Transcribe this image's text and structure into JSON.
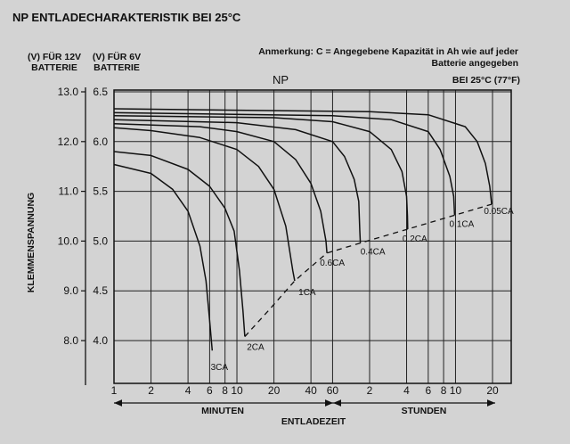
{
  "title": "NP ENTLADECHARAKTERISTIK BEI 25°C",
  "note": "Anmerkung: C = Angegebene Kapazität in Ah wie auf jeder Batterie angegeben",
  "condition": "BEI 25°C (77°F)",
  "y12_header": [
    "(V) FÜR 12V",
    "BATTERIE"
  ],
  "y6_header": [
    "(V) FÜR 6V",
    "BATTERIE"
  ],
  "chart_data": {
    "type": "line",
    "subtitle": "NP",
    "ylabel": "KLEMMENSPANNUNG",
    "xlabel": "ENTLADEZEIT",
    "x_scale": "log",
    "x_segments": [
      {
        "label": "MINUTEN",
        "range": [
          1,
          60
        ]
      },
      {
        "label": "STUNDEN",
        "range": [
          60,
          1200
        ]
      }
    ],
    "x_ticks": [
      {
        "label": "1",
        "minutes": 1
      },
      {
        "label": "2",
        "minutes": 2
      },
      {
        "label": "4",
        "minutes": 4
      },
      {
        "label": "6",
        "minutes": 6
      },
      {
        "label": "8",
        "minutes": 8
      },
      {
        "label": "10",
        "minutes": 10
      },
      {
        "label": "20",
        "minutes": 20
      },
      {
        "label": "40",
        "minutes": 40
      },
      {
        "label": "60",
        "minutes": 60
      },
      {
        "label": "2",
        "minutes": 120
      },
      {
        "label": "4",
        "minutes": 240
      },
      {
        "label": "6",
        "minutes": 360
      },
      {
        "label": "8",
        "minutes": 480
      },
      {
        "label": "10",
        "minutes": 600
      },
      {
        "label": "20",
        "minutes": 1200
      }
    ],
    "y_ticks_6v": [
      "6.5",
      "6.0",
      "5.5",
      "5.0",
      "4.5",
      "4.0"
    ],
    "y_ticks_12v": [
      "13.0",
      "12.0",
      "11.0",
      "10.0",
      "9.0",
      "8.0"
    ],
    "ylim_6v": [
      3.6,
      6.5
    ],
    "grid": true,
    "series": [
      {
        "name": "3CA",
        "points": [
          [
            1,
            5.77
          ],
          [
            2,
            5.68
          ],
          [
            3,
            5.52
          ],
          [
            4,
            5.3
          ],
          [
            5,
            4.95
          ],
          [
            5.6,
            4.6
          ],
          [
            6,
            4.2
          ],
          [
            6.3,
            3.9
          ]
        ]
      },
      {
        "name": "2CA",
        "points": [
          [
            1,
            5.9
          ],
          [
            2,
            5.86
          ],
          [
            4,
            5.72
          ],
          [
            6,
            5.55
          ],
          [
            8,
            5.33
          ],
          [
            9.5,
            5.1
          ],
          [
            10.5,
            4.7
          ],
          [
            11.2,
            4.3
          ],
          [
            11.6,
            4.04
          ]
        ]
      },
      {
        "name": "1CA",
        "points": [
          [
            1,
            6.14
          ],
          [
            2,
            6.11
          ],
          [
            5,
            6.04
          ],
          [
            10,
            5.92
          ],
          [
            15,
            5.75
          ],
          [
            20,
            5.52
          ],
          [
            25,
            5.15
          ],
          [
            28.5,
            4.7
          ],
          [
            29.5,
            4.6
          ]
        ]
      },
      {
        "name": "0.6CA",
        "points": [
          [
            1,
            6.18
          ],
          [
            5,
            6.15
          ],
          [
            10,
            6.1
          ],
          [
            20,
            6.0
          ],
          [
            30,
            5.82
          ],
          [
            40,
            5.58
          ],
          [
            48,
            5.3
          ],
          [
            53,
            5.0
          ],
          [
            54,
            4.88
          ]
        ]
      },
      {
        "name": "0.4CA",
        "points": [
          [
            1,
            6.22
          ],
          [
            10,
            6.19
          ],
          [
            30,
            6.12
          ],
          [
            60,
            6.0
          ],
          [
            75,
            5.85
          ],
          [
            90,
            5.62
          ],
          [
            98,
            5.4
          ],
          [
            100,
            5.1
          ],
          [
            101,
            4.98
          ]
        ]
      },
      {
        "name": "0.2CA",
        "points": [
          [
            1,
            6.26
          ],
          [
            20,
            6.24
          ],
          [
            60,
            6.2
          ],
          [
            120,
            6.1
          ],
          [
            180,
            5.92
          ],
          [
            220,
            5.7
          ],
          [
            240,
            5.45
          ],
          [
            244,
            5.25
          ],
          [
            245,
            5.12
          ]
        ]
      },
      {
        "name": "0.1CA",
        "points": [
          [
            1,
            6.29
          ],
          [
            60,
            6.26
          ],
          [
            180,
            6.22
          ],
          [
            360,
            6.1
          ],
          [
            450,
            5.92
          ],
          [
            540,
            5.65
          ],
          [
            580,
            5.45
          ],
          [
            590,
            5.26
          ]
        ]
      },
      {
        "name": "0.05CA",
        "points": [
          [
            1,
            6.33
          ],
          [
            120,
            6.3
          ],
          [
            360,
            6.27
          ],
          [
            720,
            6.15
          ],
          [
            900,
            6.0
          ],
          [
            1050,
            5.78
          ],
          [
            1140,
            5.55
          ],
          [
            1180,
            5.37
          ]
        ]
      }
    ],
    "cutoff_curve": {
      "style": "dashed",
      "points": [
        [
          11.6,
          4.04
        ],
        [
          18,
          4.3
        ],
        [
          29.5,
          4.6
        ],
        [
          54,
          4.88
        ],
        [
          101,
          4.98
        ],
        [
          245,
          5.12
        ],
        [
          590,
          5.26
        ],
        [
          1180,
          5.37
        ]
      ]
    }
  }
}
